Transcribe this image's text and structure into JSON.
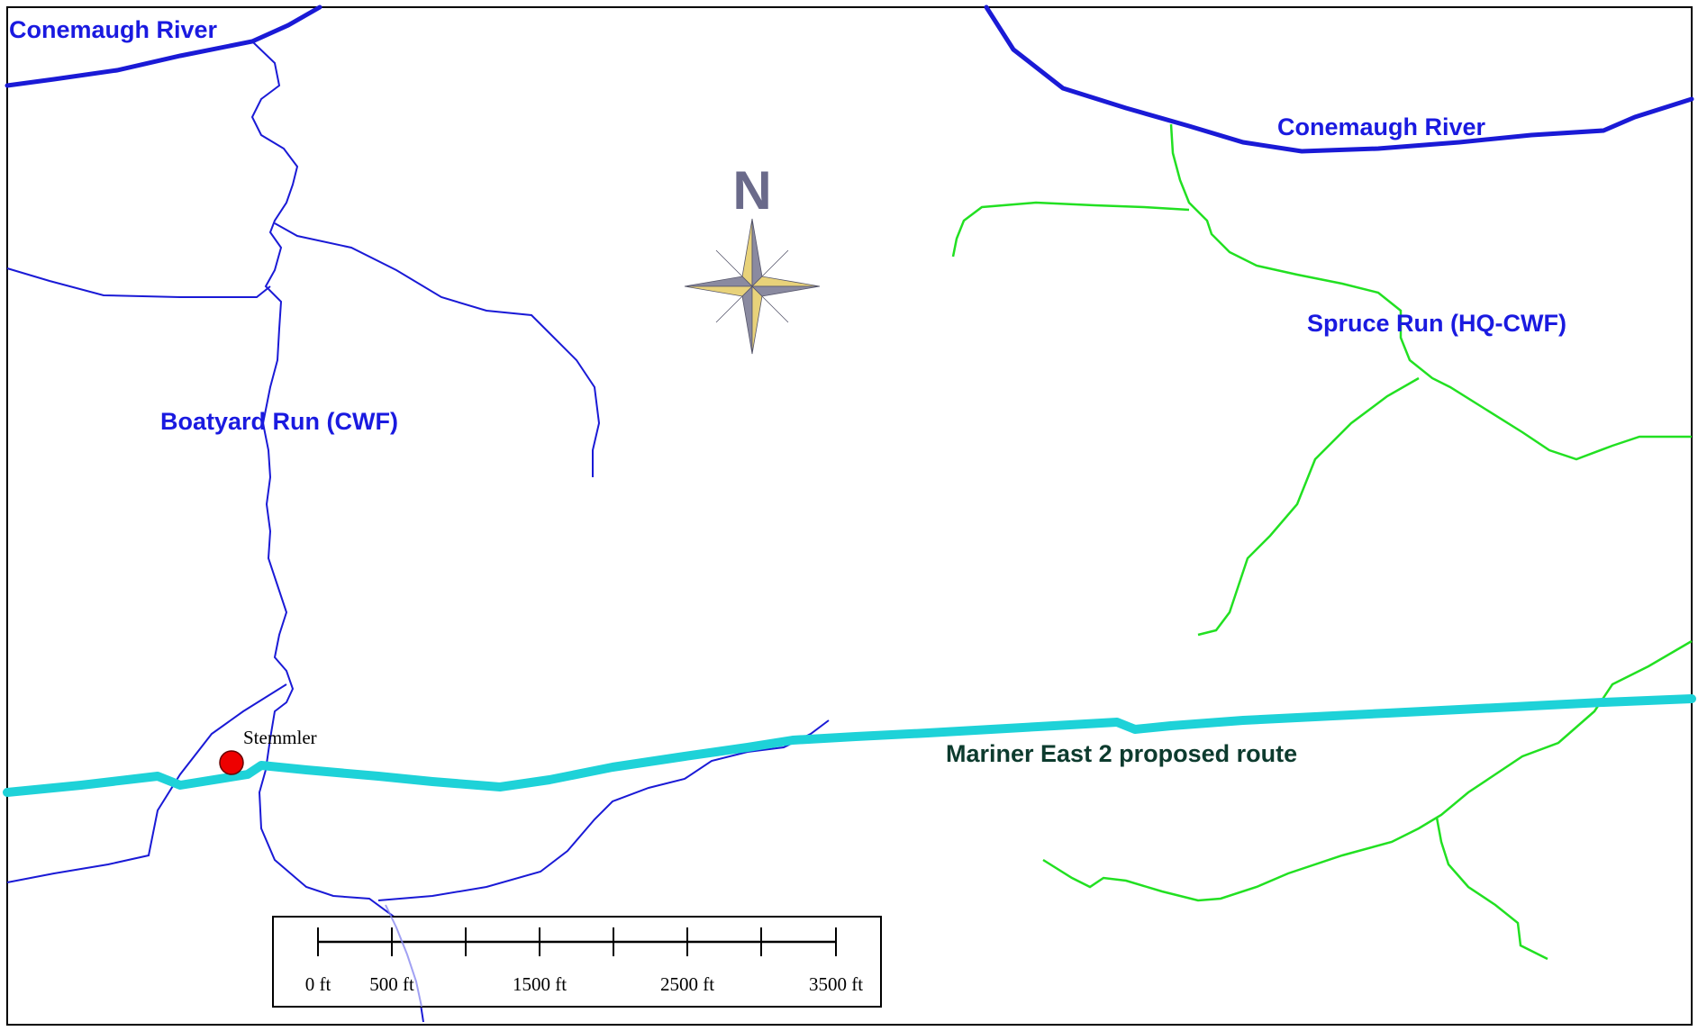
{
  "map": {
    "labels": {
      "conemaugh_west": "Conemaugh River",
      "conemaugh_east": "Conemaugh River",
      "boatyard": "Boatyard Run (CWF)",
      "spruce": "Spruce Run (HQ-CWF)",
      "route": "Mariner East 2 proposed route",
      "point": "Stemmler"
    },
    "north_arrow": {
      "letter": "N",
      "icon": "compass-rose-icon"
    },
    "scale_bar": {
      "labels": [
        "0 ft",
        "500 ft",
        "1500 ft",
        "2500 ft",
        "3500 ft"
      ]
    },
    "colors": {
      "river_blue": "#1a1ad6",
      "label_blue": "#1a1ae0",
      "stream_green": "#22e022",
      "route_cyan": "#1ed2d8",
      "route_label": "#0d3b2e",
      "point_red": "#ee0000",
      "compass_gold": "#e8d27a",
      "compass_gray": "#8a8aa0",
      "north_letter": "#6a6a8a"
    }
  }
}
